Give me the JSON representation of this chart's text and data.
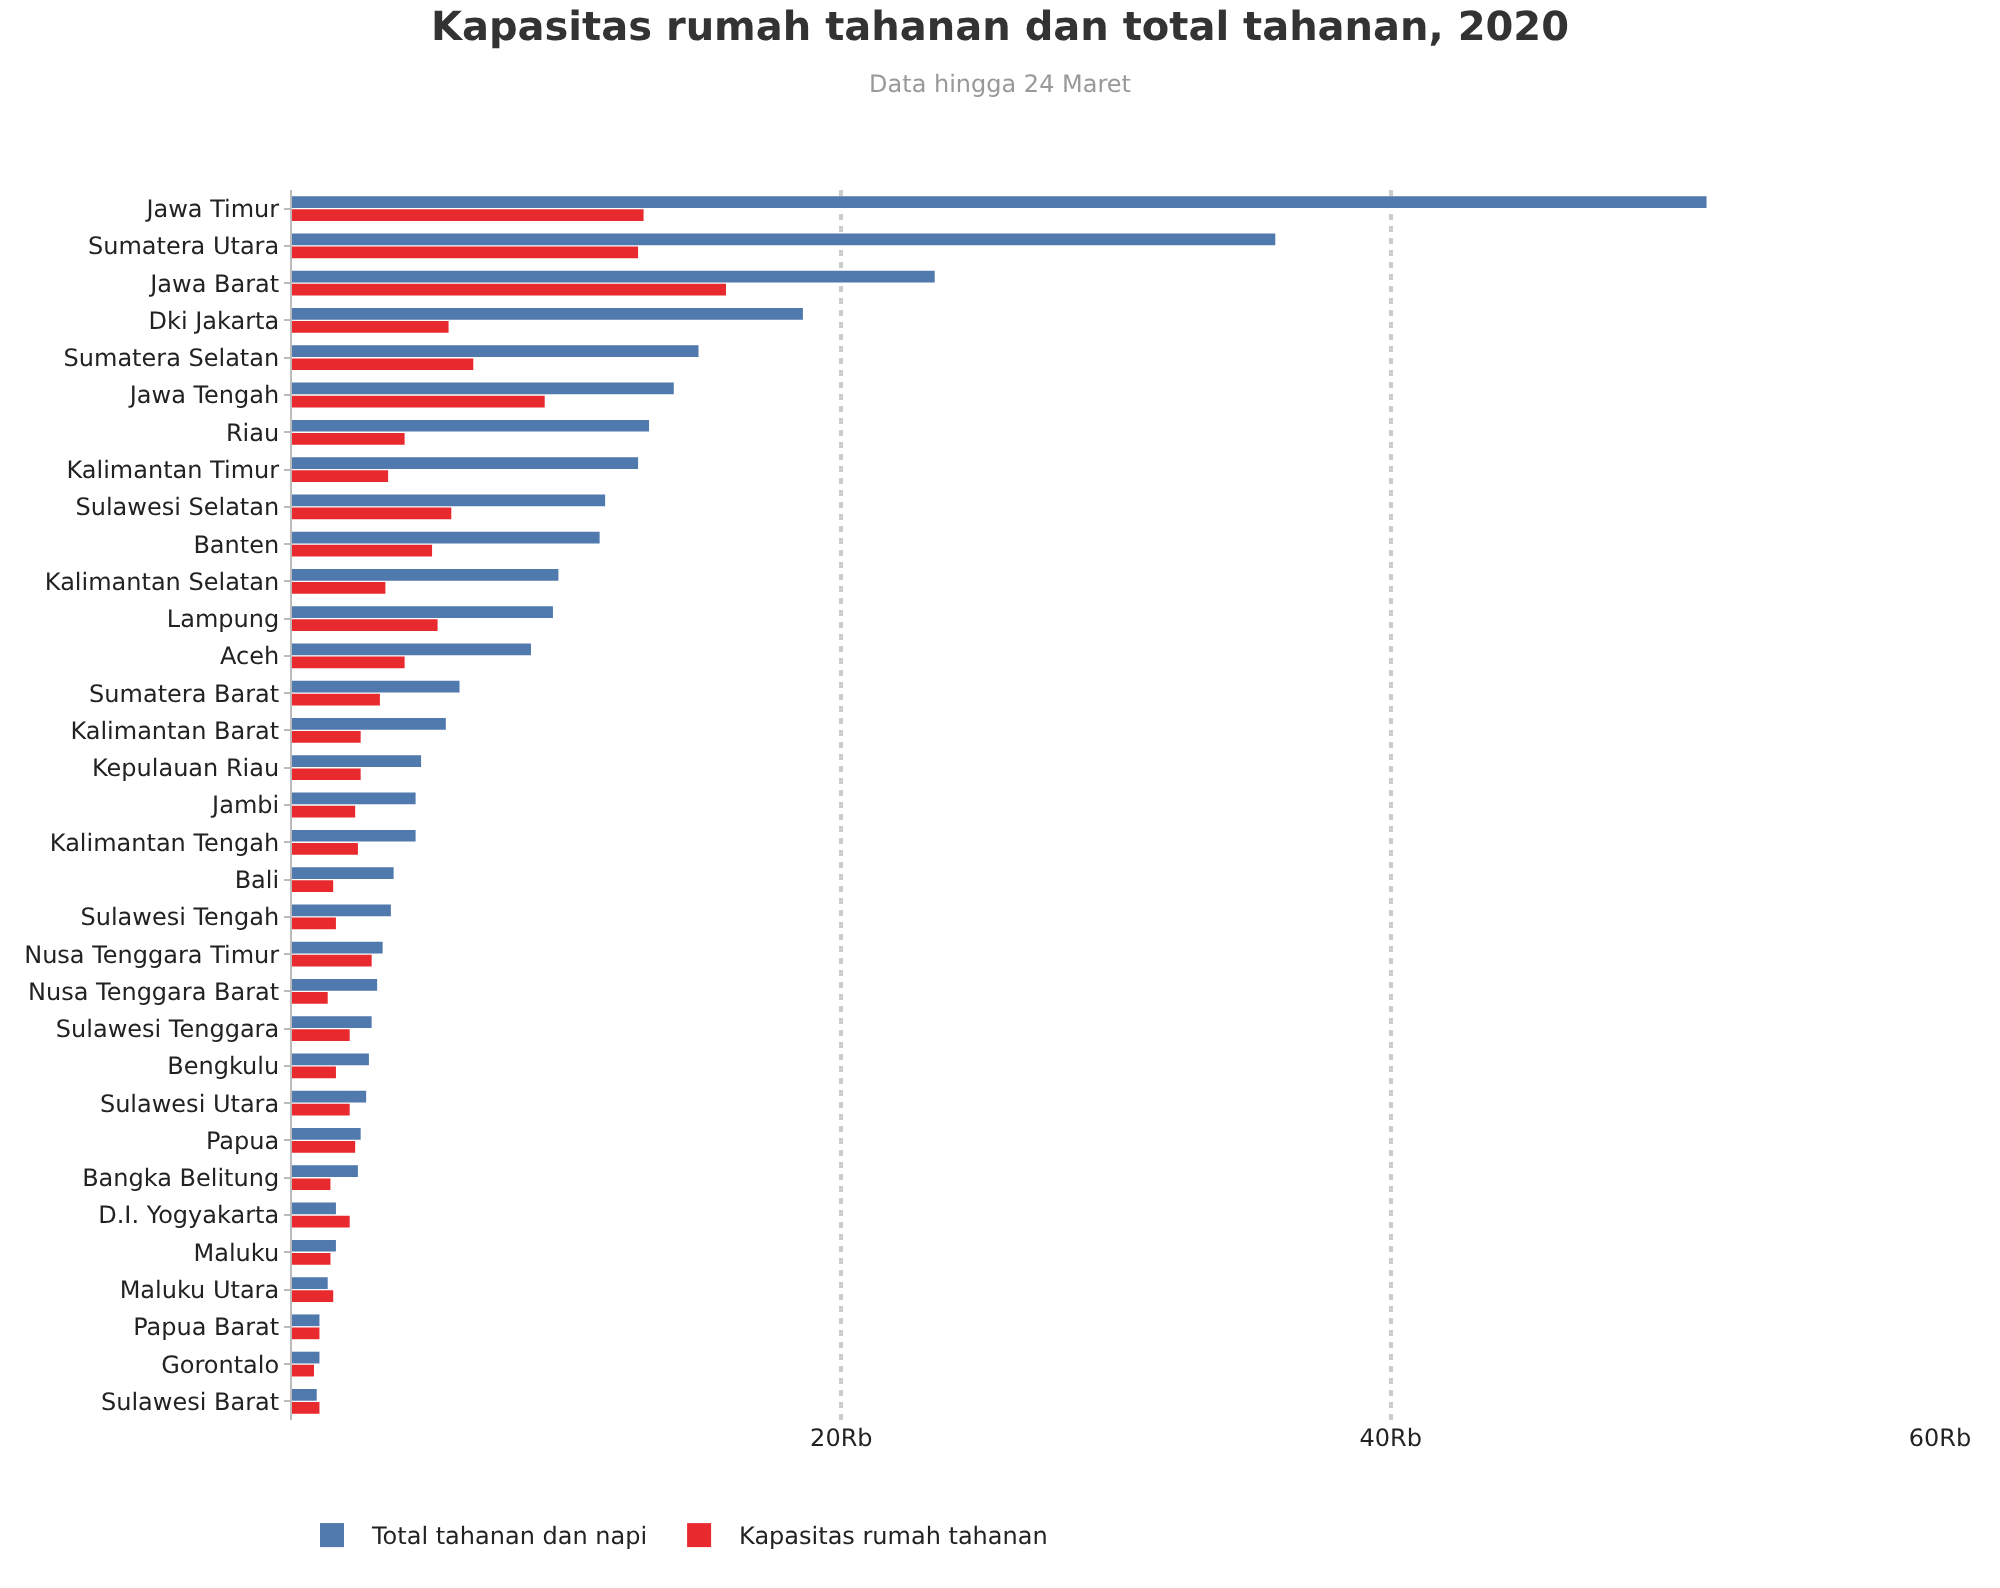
{
  "chart_data": {
    "type": "bar",
    "orientation": "horizontal",
    "title": "Kapasitas rumah tahanan dan total tahanan, 2020",
    "subtitle": "Data hingga 24 Maret",
    "categories": [
      "Jawa Timur",
      "Sumatera Utara",
      "Jawa Barat",
      "Dki Jakarta",
      "Sumatera Selatan",
      "Jawa Tengah",
      "Riau",
      "Kalimantan Timur",
      "Sulawesi Selatan",
      "Banten",
      "Kalimantan Selatan",
      "Lampung",
      "Aceh",
      "Sumatera Barat",
      "Kalimantan Barat",
      "Kepulauan Riau",
      "Jambi",
      "Kalimantan Tengah",
      "Bali",
      "Sulawesi Tengah",
      "Nusa Tenggara Timur",
      "Nusa Tenggara Barat",
      "Sulawesi Tenggara",
      "Bengkulu",
      "Sulawesi Utara",
      "Papua",
      "Bangka Belitung",
      "D.I. Yogyakarta",
      "Maluku",
      "Maluku Utara",
      "Papua Barat",
      "Gorontalo",
      "Sulawesi Barat"
    ],
    "series": [
      {
        "name": "Total tahanan dan napi",
        "color": "#5079ad",
        "values": [
          51.5,
          35.8,
          23.4,
          18.6,
          14.8,
          13.9,
          13.0,
          12.6,
          11.4,
          11.2,
          9.7,
          9.5,
          8.7,
          6.1,
          5.6,
          4.7,
          4.5,
          4.5,
          3.7,
          3.6,
          3.3,
          3.1,
          2.9,
          2.8,
          2.7,
          2.5,
          2.4,
          1.6,
          1.6,
          1.3,
          1.0,
          1.0,
          0.9
        ]
      },
      {
        "name": "Kapasitas rumah tahanan",
        "color": "#e8292e",
        "values": [
          12.8,
          12.6,
          15.8,
          5.7,
          6.6,
          9.2,
          4.1,
          3.5,
          5.8,
          5.1,
          3.4,
          5.3,
          4.1,
          3.2,
          2.5,
          2.5,
          2.3,
          2.4,
          1.5,
          1.6,
          2.9,
          1.3,
          2.1,
          1.6,
          2.1,
          2.3,
          1.4,
          2.1,
          1.4,
          1.5,
          1.0,
          0.8,
          1.0
        ]
      }
    ],
    "xlim": [
      0,
      60
    ],
    "xticks": [
      {
        "value": 0,
        "label": null
      },
      {
        "value": 20,
        "label": "20Rb"
      },
      {
        "value": 40,
        "label": "40Rb"
      },
      {
        "value": 60,
        "label": "60Rb"
      }
    ],
    "grid": "x",
    "legend": "bottom"
  }
}
